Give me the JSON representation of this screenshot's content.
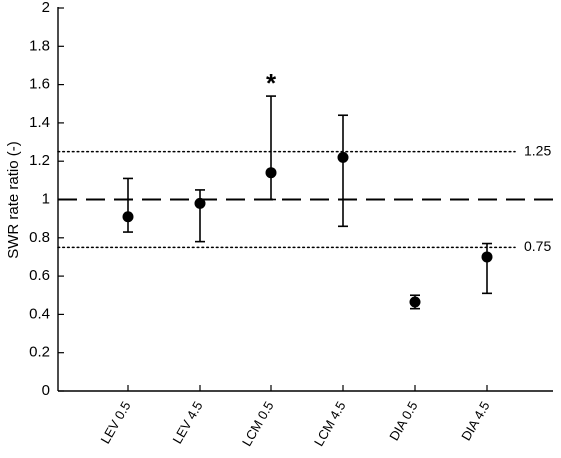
{
  "chart_data": {
    "type": "scatter",
    "title": "",
    "xlabel": "",
    "ylabel": "SWR rate ratio (-)",
    "ylim": [
      0,
      2
    ],
    "yticks": [
      0,
      0.2,
      0.4,
      0.6,
      0.8,
      1,
      1.2,
      1.4,
      1.6,
      1.8,
      2
    ],
    "ytick_labels": [
      "0",
      "0.2",
      "0.4",
      "0.6",
      "0.8",
      "1",
      "1.2",
      "1.4",
      "1.6",
      "1.8",
      "2"
    ],
    "grid": false,
    "categories": [
      "LEV 0.5",
      "LEV 4.5",
      "LCM 0.5",
      "LCM 4.5",
      "DIA 0.5",
      "DIA 4.5"
    ],
    "values": [
      0.91,
      0.98,
      1.14,
      1.22,
      0.465,
      0.7
    ],
    "error_low": [
      0.83,
      0.78,
      1.0,
      0.86,
      0.43,
      0.51
    ],
    "error_high": [
      1.11,
      1.05,
      1.54,
      1.44,
      0.5,
      0.77
    ],
    "significance": [
      "",
      "",
      "*",
      "",
      "",
      ""
    ],
    "reference_lines": [
      {
        "y": 1.0,
        "style": "dashed",
        "label": ""
      },
      {
        "y": 1.25,
        "style": "dotted",
        "label": "1.25"
      },
      {
        "y": 0.75,
        "style": "dotted",
        "label": "0.75"
      }
    ]
  }
}
